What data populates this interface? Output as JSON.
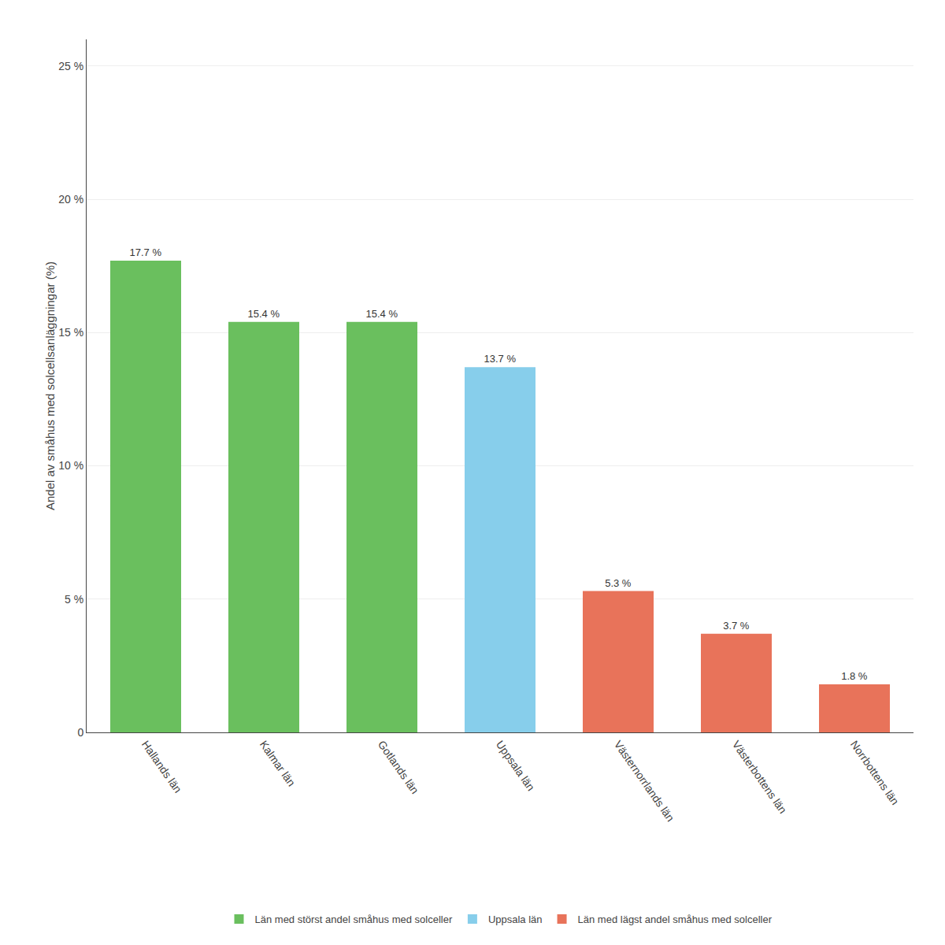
{
  "chart_data": {
    "type": "bar",
    "categories": [
      "Hallands län",
      "Kalmar län",
      "Gotlands län",
      "Uppsala län",
      "Västernorrlands län",
      "Västerbottens län",
      "Norrbottens län"
    ],
    "series": [
      {
        "name": "Län med störst andel småhus med solceller",
        "color": "#6abf5e",
        "values": [
          17.7,
          15.4,
          15.4,
          null,
          null,
          null,
          null
        ],
        "value_labels": [
          "17.7 %",
          "15.4 %",
          "15.4 %",
          null,
          null,
          null,
          null
        ]
      },
      {
        "name": "Uppsala län",
        "color": "#87ceeb",
        "values": [
          null,
          null,
          null,
          13.7,
          null,
          null,
          null
        ],
        "value_labels": [
          null,
          null,
          null,
          "13.7 %",
          null,
          null,
          null
        ]
      },
      {
        "name": "Län med lägst andel småhus med solceller",
        "color": "#e8735a",
        "values": [
          null,
          null,
          null,
          null,
          5.3,
          3.7,
          1.8
        ],
        "value_labels": [
          null,
          null,
          null,
          null,
          "5.3 %",
          "3.7 %",
          "1.8 %"
        ]
      }
    ],
    "ylabel": "Andel av småhus med solcellsanläggningar (%)",
    "ylim": [
      0,
      26
    ],
    "yticks": [
      0,
      {
        "value": 5,
        "label": "5 %"
      },
      {
        "value": 10,
        "label": "10 %"
      },
      {
        "value": 15,
        "label": "15 %"
      },
      {
        "value": 20,
        "label": "20 %"
      },
      {
        "value": 25,
        "label": "25 %"
      }
    ],
    "grid": true,
    "legend": "bottom",
    "data_labels": true
  }
}
